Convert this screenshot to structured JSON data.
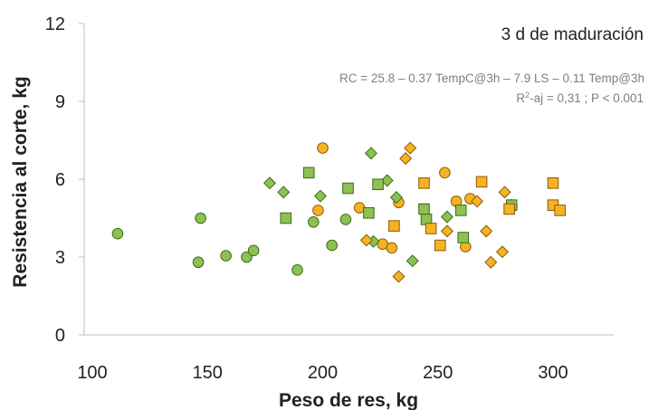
{
  "chart_data": {
    "type": "scatter",
    "title": "",
    "annotation_title": "3 d de maduración",
    "equation": "RC = 25.8 – 0.37 TempC@3h – 7.9 LS – 0.11 Temp@3h",
    "stats_prefix": "R",
    "stats_sup": "2",
    "stats_rest": "-aj = 0,31 ; P < 0.001",
    "xlabel": "Peso de res, kg",
    "ylabel": "Resistencia al corte, kg",
    "xlim": [
      100,
      325
    ],
    "ylim": [
      0,
      12
    ],
    "xticks": [
      100,
      150,
      200,
      250,
      300
    ],
    "yticks": [
      0,
      3,
      6,
      9,
      12
    ],
    "grid": false,
    "legend": "none",
    "colors": {
      "green_fill": "#8dc152",
      "green_stroke": "#3e6a1a",
      "orange_fill": "#f5b323",
      "orange_stroke": "#8a5a05"
    },
    "series": [
      {
        "marker": "circle",
        "color": "green",
        "points": [
          [
            111,
            3.9
          ],
          [
            147,
            4.5
          ],
          [
            146,
            2.8
          ],
          [
            158,
            3.05
          ],
          [
            167,
            3.0
          ],
          [
            170,
            3.25
          ],
          [
            189,
            2.5
          ],
          [
            196,
            4.35
          ],
          [
            204,
            3.45
          ],
          [
            210,
            4.45
          ]
        ]
      },
      {
        "marker": "circle",
        "color": "orange",
        "points": [
          [
            200,
            7.2
          ],
          [
            198,
            4.8
          ],
          [
            216,
            4.9
          ],
          [
            226,
            3.5
          ],
          [
            230,
            3.35
          ],
          [
            233,
            5.1
          ],
          [
            253,
            6.25
          ],
          [
            258,
            5.15
          ],
          [
            262,
            3.4
          ],
          [
            264,
            5.25
          ]
        ]
      },
      {
        "marker": "diamond",
        "color": "green",
        "points": [
          [
            177,
            5.85
          ],
          [
            183,
            5.5
          ],
          [
            199,
            5.35
          ],
          [
            221,
            7.0
          ],
          [
            222,
            3.6
          ],
          [
            228,
            5.95
          ],
          [
            232,
            5.3
          ],
          [
            239,
            2.85
          ],
          [
            254,
            4.55
          ],
          [
            282,
            5.0
          ]
        ]
      },
      {
        "marker": "diamond",
        "color": "orange",
        "points": [
          [
            219,
            3.65
          ],
          [
            233,
            2.25
          ],
          [
            236,
            6.8
          ],
          [
            238,
            7.2
          ],
          [
            254,
            4.0
          ],
          [
            267,
            5.15
          ],
          [
            271,
            4.0
          ],
          [
            273,
            2.8
          ],
          [
            278,
            3.2
          ],
          [
            279,
            5.5
          ]
        ]
      },
      {
        "marker": "square",
        "color": "green",
        "points": [
          [
            184,
            4.5
          ],
          [
            194,
            6.25
          ],
          [
            211,
            5.65
          ],
          [
            220,
            4.7
          ],
          [
            224,
            5.8
          ],
          [
            244,
            4.85
          ],
          [
            245,
            4.45
          ],
          [
            260,
            4.8
          ],
          [
            261,
            3.75
          ],
          [
            282,
            5.0
          ]
        ]
      },
      {
        "marker": "square",
        "color": "orange",
        "points": [
          [
            231,
            4.2
          ],
          [
            244,
            5.85
          ],
          [
            247,
            4.1
          ],
          [
            251,
            3.45
          ],
          [
            269,
            5.9
          ],
          [
            281,
            4.85
          ],
          [
            300,
            5.85
          ],
          [
            300,
            5.0
          ],
          [
            303,
            4.8
          ]
        ]
      }
    ]
  }
}
